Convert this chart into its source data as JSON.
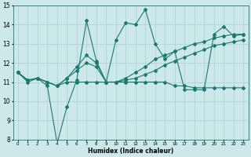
{
  "xlabel": "Humidex (Indice chaleur)",
  "x": [
    0,
    1,
    2,
    3,
    4,
    5,
    6,
    7,
    8,
    9,
    10,
    11,
    12,
    13,
    14,
    15,
    16,
    17,
    18,
    19,
    20,
    21,
    22,
    23
  ],
  "series1": [
    11.5,
    11.0,
    11.2,
    10.8,
    7.8,
    9.7,
    11.1,
    14.2,
    12.1,
    11.0,
    13.2,
    14.1,
    14.0,
    14.8,
    13.0,
    12.2,
    12.6,
    10.6,
    10.6,
    10.6,
    13.5,
    13.9,
    13.4,
    13.5
  ],
  "series2": [
    11.5,
    11.1,
    11.2,
    11.0,
    10.8,
    11.2,
    11.8,
    12.4,
    12.0,
    11.0,
    11.0,
    11.2,
    11.5,
    11.8,
    12.2,
    12.4,
    12.6,
    12.8,
    13.0,
    13.1,
    13.3,
    13.4,
    13.5,
    13.5
  ],
  "series3": [
    11.5,
    11.1,
    11.2,
    11.0,
    10.8,
    11.2,
    11.6,
    12.0,
    11.8,
    11.0,
    11.0,
    11.1,
    11.2,
    11.4,
    11.6,
    11.9,
    12.1,
    12.3,
    12.5,
    12.7,
    12.9,
    13.0,
    13.1,
    13.2
  ],
  "series4": [
    11.5,
    11.1,
    11.2,
    11.0,
    10.8,
    11.0,
    11.0,
    11.0,
    11.0,
    11.0,
    11.0,
    11.0,
    11.0,
    11.0,
    11.0,
    11.0,
    10.8,
    10.8,
    10.7,
    10.7,
    10.7,
    10.7,
    10.7,
    10.7
  ],
  "line_color": "#1a7a6e",
  "bg_color": "#cce8e8",
  "grid_color": "#aacfcf",
  "ylim": [
    8,
    15
  ],
  "yticks": [
    8,
    9,
    10,
    11,
    12,
    13,
    14,
    15
  ],
  "figsize": [
    3.2,
    2.0
  ],
  "dpi": 100
}
